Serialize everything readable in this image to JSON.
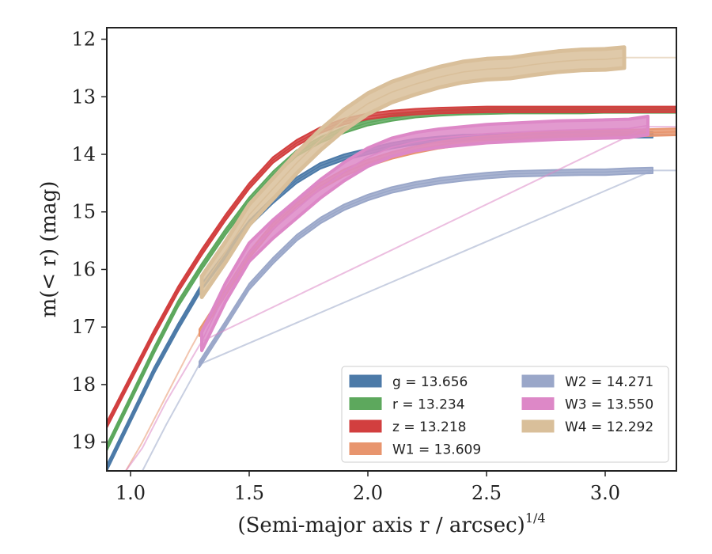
{
  "chart_data": {
    "type": "line",
    "title": "",
    "xlabel": "(Semi-major axis r / arcsec)",
    "xlabel_sup": "1/4",
    "ylabel": "m(< r) (mag)",
    "xlim": [
      0.9,
      3.3
    ],
    "ylim": [
      19.5,
      11.8
    ],
    "y_inverted": true,
    "x_ticks": [
      1.0,
      1.5,
      2.0,
      2.5,
      3.0
    ],
    "x_tick_labels": [
      "1.0",
      "1.5",
      "2.0",
      "2.5",
      "3.0"
    ],
    "y_ticks": [
      12,
      13,
      14,
      15,
      16,
      17,
      18,
      19
    ],
    "y_tick_labels": [
      "12",
      "13",
      "14",
      "15",
      "16",
      "17",
      "18",
      "19"
    ],
    "grid": false,
    "legend_position": "lower-right",
    "legend_columns": 2,
    "series": [
      {
        "name": "g",
        "legend": "g = 13.656",
        "color": "#4C7AA8",
        "band": 0.05,
        "width": 2,
        "x": [
          0.9,
          1.0,
          1.1,
          1.2,
          1.3,
          1.4,
          1.5,
          1.6,
          1.7,
          1.8,
          1.9,
          2.0,
          2.1,
          2.2,
          2.3,
          2.4,
          2.5,
          2.6,
          2.7,
          2.8,
          2.9,
          3.0,
          3.1,
          3.2
        ],
        "y": [
          19.45,
          18.6,
          17.75,
          17.0,
          16.3,
          15.75,
          15.2,
          14.8,
          14.45,
          14.2,
          14.05,
          13.95,
          13.85,
          13.78,
          13.74,
          13.71,
          13.7,
          13.69,
          13.68,
          13.67,
          13.66,
          13.66,
          13.66,
          13.66
        ],
        "faint_x": [
          3.2,
          3.3
        ],
        "faint_y": [
          13.66,
          13.66
        ]
      },
      {
        "name": "r",
        "legend": "r = 13.234",
        "color": "#5DA85D",
        "band": 0.05,
        "width": 2,
        "x": [
          0.9,
          1.0,
          1.1,
          1.2,
          1.3,
          1.4,
          1.5,
          1.6,
          1.7,
          1.8,
          1.9,
          2.0,
          2.1,
          2.2,
          2.3,
          2.4,
          2.5,
          2.6,
          2.7,
          2.8,
          2.9,
          3.0,
          3.1,
          3.2,
          3.3
        ],
        "y": [
          19.1,
          18.25,
          17.4,
          16.6,
          15.95,
          15.35,
          14.8,
          14.35,
          13.98,
          13.75,
          13.58,
          13.45,
          13.37,
          13.31,
          13.28,
          13.26,
          13.25,
          13.24,
          13.24,
          13.24,
          13.24,
          13.23,
          13.23,
          13.23,
          13.23
        ]
      },
      {
        "name": "z",
        "legend": "z = 13.218",
        "color": "#D23F3F",
        "band": 0.05,
        "width": 2,
        "x": [
          0.9,
          1.0,
          1.1,
          1.2,
          1.3,
          1.4,
          1.5,
          1.6,
          1.7,
          1.8,
          1.9,
          2.0,
          2.1,
          2.2,
          2.3,
          2.4,
          2.5,
          2.6,
          2.7,
          2.8,
          2.9,
          3.0,
          3.1,
          3.2,
          3.3
        ],
        "y": [
          18.7,
          17.9,
          17.1,
          16.35,
          15.7,
          15.1,
          14.55,
          14.1,
          13.8,
          13.58,
          13.43,
          13.34,
          13.29,
          13.26,
          13.24,
          13.23,
          13.22,
          13.22,
          13.22,
          13.22,
          13.22,
          13.22,
          13.22,
          13.22,
          13.22
        ]
      },
      {
        "name": "W1",
        "legend": "W1 = 13.609",
        "color": "#E8956E",
        "band": 0.06,
        "width": 2,
        "x": [
          1.29,
          1.4,
          1.5,
          1.6,
          1.7,
          1.8,
          1.9,
          2.0,
          2.1,
          2.2,
          2.3,
          2.4,
          2.5,
          2.6,
          2.7,
          2.8,
          2.9,
          3.0,
          3.1,
          3.2,
          3.3
        ],
        "y": [
          17.1,
          16.4,
          15.75,
          15.25,
          14.85,
          14.55,
          14.32,
          14.15,
          14.02,
          13.92,
          13.84,
          13.78,
          13.74,
          13.71,
          13.68,
          13.66,
          13.65,
          13.64,
          13.63,
          13.62,
          13.61
        ],
        "faint_x": [
          0.98,
          1.05,
          1.15,
          1.25,
          1.29
        ],
        "faint_y": [
          19.5,
          19.0,
          18.2,
          17.4,
          17.1
        ]
      },
      {
        "name": "W2",
        "legend": "W2 = 14.271",
        "color": "#9AA7C9",
        "band": 0.05,
        "width": 2,
        "x": [
          1.29,
          1.4,
          1.5,
          1.6,
          1.7,
          1.8,
          1.9,
          2.0,
          2.1,
          2.2,
          2.3,
          2.4,
          2.5,
          2.6,
          2.7,
          2.8,
          2.9,
          3.0,
          3.1,
          3.2
        ],
        "y": [
          17.65,
          16.95,
          16.3,
          15.85,
          15.45,
          15.15,
          14.92,
          14.75,
          14.62,
          14.53,
          14.46,
          14.41,
          14.37,
          14.34,
          14.33,
          14.32,
          14.31,
          14.31,
          14.29,
          14.28
        ],
        "faint_x": [
          1.05,
          1.15,
          1.25,
          1.29,
          3.2,
          3.3
        ],
        "faint_y": [
          19.5,
          18.7,
          17.95,
          17.65,
          14.28,
          14.28
        ]
      },
      {
        "name": "W3",
        "legend": "W3 = 13.550",
        "color": "#DD88C7",
        "band": 0.16,
        "width": 4,
        "x": [
          1.3,
          1.4,
          1.5,
          1.6,
          1.7,
          1.8,
          1.9,
          2.0,
          2.1,
          2.2,
          2.3,
          2.4,
          2.5,
          2.6,
          2.7,
          2.8,
          2.9,
          3.0,
          3.1,
          3.18
        ],
        "y": [
          17.25,
          16.4,
          15.7,
          15.3,
          14.95,
          14.6,
          14.3,
          14.05,
          13.88,
          13.78,
          13.72,
          13.68,
          13.64,
          13.62,
          13.6,
          13.58,
          13.57,
          13.56,
          13.55,
          13.5
        ],
        "faint_x": [
          0.98,
          1.05,
          1.15,
          1.3,
          3.18,
          3.3
        ],
        "faint_y": [
          19.5,
          19.1,
          18.3,
          17.25,
          13.52,
          13.52
        ]
      },
      {
        "name": "W4",
        "legend": "W4 = 12.292",
        "color": "#D9BF9A",
        "band": 0.18,
        "width": 5,
        "x": [
          1.3,
          1.4,
          1.5,
          1.6,
          1.7,
          1.8,
          1.9,
          2.0,
          2.1,
          2.2,
          2.3,
          2.4,
          2.5,
          2.6,
          2.7,
          2.8,
          2.9,
          3.0,
          3.08
        ],
        "y": [
          16.3,
          15.7,
          15.05,
          14.6,
          14.15,
          13.75,
          13.4,
          13.12,
          12.92,
          12.78,
          12.66,
          12.57,
          12.52,
          12.5,
          12.44,
          12.39,
          12.36,
          12.35,
          12.32
        ],
        "faint_x": [
          3.08,
          3.3
        ],
        "faint_y": [
          12.32,
          12.32
        ]
      }
    ]
  }
}
